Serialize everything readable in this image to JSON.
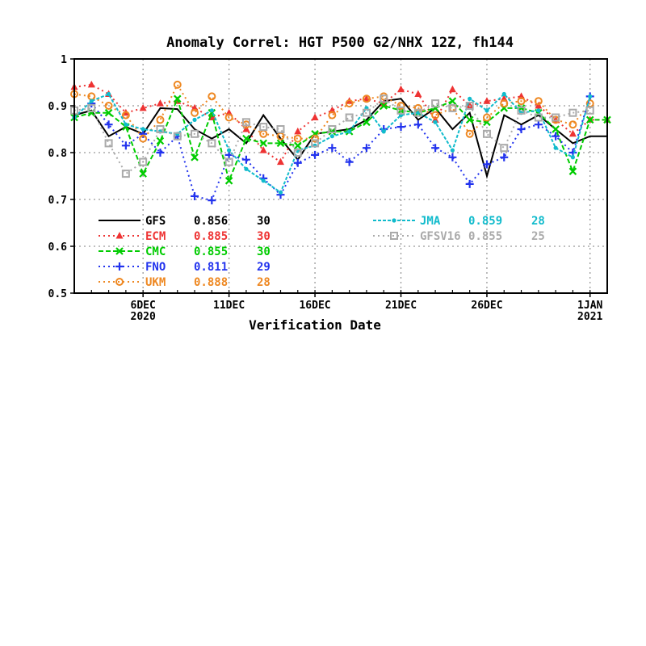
{
  "chart_data": {
    "type": "line",
    "title": "Anomaly Correl: HGT P500 G2/NHX 12Z, fh144",
    "xlabel": "Verification Date",
    "ylabel": "",
    "ylim": [
      0.5,
      1.0
    ],
    "xlim": [
      2,
      33
    ],
    "yticks": [
      {
        "v": 0.5,
        "label": "0.5"
      },
      {
        "v": 0.6,
        "label": "0.6"
      },
      {
        "v": 0.7,
        "label": "0.7"
      },
      {
        "v": 0.8,
        "label": "0.8"
      },
      {
        "v": 0.9,
        "label": "0.9"
      },
      {
        "v": 1.0,
        "label": "1"
      }
    ],
    "xticks": [
      {
        "d": 6,
        "line1": "6DEC",
        "line2": "2020"
      },
      {
        "d": 11,
        "line1": "11DEC",
        "line2": ""
      },
      {
        "d": 16,
        "line1": "16DEC",
        "line2": ""
      },
      {
        "d": 21,
        "line1": "21DEC",
        "line2": ""
      },
      {
        "d": 26,
        "line1": "26DEC",
        "line2": ""
      },
      {
        "d": 32,
        "line1": "1JAN",
        "line2": "2021"
      }
    ],
    "grid": true,
    "series": [
      {
        "name": "GFS",
        "mean": "0.856",
        "count": "30",
        "color": "#000000",
        "dash": "",
        "marker": "none",
        "x": [
          2,
          3,
          4,
          5,
          6,
          7,
          8,
          9,
          10,
          11,
          12,
          13,
          14,
          15,
          16,
          17,
          18,
          19,
          20,
          21,
          22,
          23,
          24,
          25,
          26,
          27,
          28,
          29,
          30,
          31,
          32,
          33
        ],
        "y": [
          0.88,
          0.89,
          0.835,
          0.855,
          0.84,
          0.895,
          0.893,
          0.85,
          0.83,
          0.85,
          0.82,
          0.88,
          0.83,
          0.785,
          0.84,
          0.845,
          0.85,
          0.87,
          0.91,
          0.915,
          0.87,
          0.895,
          0.85,
          0.885,
          0.75,
          0.88,
          0.86,
          0.88,
          0.85,
          0.82,
          0.835,
          0.835
        ]
      },
      {
        "name": "ECM",
        "mean": "0.885",
        "count": "30",
        "color": "#ee3333",
        "dash": "2 4",
        "marker": "triangle",
        "x": [
          2,
          3,
          4,
          5,
          6,
          7,
          8,
          9,
          10,
          11,
          12,
          13,
          14,
          15,
          16,
          17,
          18,
          19,
          20,
          21,
          22,
          23,
          24,
          25,
          26,
          27,
          28,
          29,
          30,
          31,
          32,
          33
        ],
        "y": [
          0.94,
          0.945,
          0.925,
          0.885,
          0.895,
          0.905,
          0.91,
          0.895,
          0.875,
          0.885,
          0.85,
          0.805,
          0.78,
          0.845,
          0.875,
          0.89,
          0.91,
          0.915,
          0.905,
          0.935,
          0.925,
          0.87,
          0.935,
          0.9,
          0.91,
          0.915,
          0.92,
          0.9,
          0.87,
          0.84,
          0.87,
          0.87
        ]
      },
      {
        "name": "CMC",
        "mean": "0.855",
        "count": "30",
        "color": "#00cc00",
        "dash": "6 3",
        "marker": "x",
        "x": [
          2,
          3,
          4,
          5,
          6,
          7,
          8,
          9,
          10,
          11,
          12,
          13,
          14,
          15,
          16,
          17,
          18,
          19,
          20,
          21,
          22,
          23,
          24,
          25,
          26,
          27,
          28,
          29,
          30,
          31,
          32,
          33
        ],
        "y": [
          0.875,
          0.885,
          0.885,
          0.855,
          0.755,
          0.825,
          0.915,
          0.79,
          0.885,
          0.74,
          0.83,
          0.82,
          0.82,
          0.815,
          0.84,
          0.845,
          0.845,
          0.865,
          0.9,
          0.89,
          0.885,
          0.895,
          0.91,
          0.87,
          0.865,
          0.895,
          0.895,
          0.885,
          0.85,
          0.76,
          0.87,
          0.87
        ]
      },
      {
        "name": "FNO",
        "mean": "0.811",
        "count": "29",
        "color": "#2233ee",
        "dash": "2 4",
        "marker": "plus",
        "x": [
          3,
          4,
          5,
          6,
          7,
          8,
          9,
          10,
          11,
          12,
          13,
          14,
          15,
          16,
          17,
          18,
          19,
          20,
          21,
          22,
          23,
          24,
          25,
          26,
          27,
          28,
          29,
          30,
          31,
          32
        ],
        "y": [
          0.905,
          0.86,
          0.815,
          0.84,
          0.8,
          0.835,
          0.707,
          0.698,
          0.795,
          0.785,
          0.745,
          0.71,
          0.778,
          0.795,
          0.81,
          0.78,
          0.81,
          0.85,
          0.855,
          0.86,
          0.81,
          0.79,
          0.733,
          0.775,
          0.79,
          0.85,
          0.86,
          0.835,
          0.8,
          0.92
        ]
      },
      {
        "name": "UKM",
        "mean": "0.888",
        "count": "28",
        "color": "#ee8822",
        "dash": "2 4",
        "marker": "circle",
        "x": [
          2,
          3,
          4,
          5,
          6,
          7,
          8,
          9,
          10,
          11,
          12,
          13,
          14,
          15,
          16,
          17,
          18,
          19,
          20,
          21,
          22,
          23,
          24,
          25,
          26,
          27,
          28,
          29,
          30,
          31,
          32
        ],
        "y": [
          0.925,
          0.92,
          0.9,
          0.88,
          0.83,
          0.87,
          0.945,
          0.885,
          0.92,
          0.875,
          0.86,
          0.84,
          0.835,
          0.83,
          0.83,
          0.88,
          0.905,
          0.915,
          0.92,
          0.9,
          0.895,
          0.88,
          0.895,
          0.84,
          0.875,
          0.905,
          0.91,
          0.91,
          0.87,
          0.86,
          0.905
        ]
      },
      {
        "name": "JMA",
        "mean": "0.859",
        "count": "28",
        "color": "#11bbcc",
        "dash": "4 2",
        "marker": "dot",
        "x": [
          2,
          3,
          4,
          5,
          6,
          7,
          8,
          9,
          10,
          11,
          12,
          13,
          14,
          15,
          16,
          17,
          18,
          19,
          20,
          21,
          22,
          23,
          24,
          25,
          26,
          27,
          28,
          29,
          30,
          31,
          32
        ],
        "y": [
          0.875,
          0.91,
          0.925,
          0.86,
          0.85,
          0.845,
          0.84,
          0.87,
          0.89,
          0.805,
          0.765,
          0.74,
          0.715,
          0.805,
          0.815,
          0.835,
          0.845,
          0.895,
          0.845,
          0.88,
          0.885,
          0.865,
          0.805,
          0.915,
          0.89,
          0.925,
          0.885,
          0.89,
          0.81,
          0.79,
          0.92
        ]
      },
      {
        "name": "GFSV16",
        "mean": "0.855",
        "count": "25",
        "color": "#aaaaaa",
        "dash": "2 4",
        "marker": "square",
        "x": [
          2,
          3,
          4,
          5,
          6,
          7,
          8,
          9,
          10,
          11,
          12,
          13,
          14,
          15,
          16,
          17,
          18,
          19,
          20,
          21,
          22,
          23,
          24,
          25,
          26,
          27,
          28,
          29,
          30,
          31,
          32
        ],
        "y": [
          0.89,
          0.895,
          0.82,
          0.755,
          0.78,
          0.85,
          0.835,
          0.84,
          0.82,
          0.78,
          0.865,
          0.855,
          0.85,
          0.8,
          0.82,
          0.85,
          0.875,
          0.885,
          0.915,
          0.89,
          0.885,
          0.905,
          0.895,
          0.9,
          0.84,
          0.81,
          0.89,
          0.875,
          0.875,
          0.885,
          0.89
        ]
      }
    ]
  }
}
